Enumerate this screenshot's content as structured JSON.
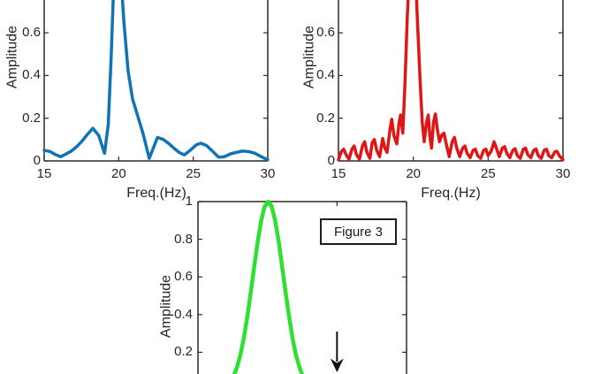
{
  "annotations": {
    "figure_box_label": "Figure 3",
    "arrow": {
      "points_to_x_hz": 25,
      "direction": "down"
    }
  },
  "colors": {
    "blue_line": "#0f73b6",
    "red_line": "#e01616",
    "green_line": "#2fe12f",
    "axis": "#2b2b2b",
    "text": "#262626",
    "annotation": "#111111"
  },
  "chart_data": [
    {
      "id": "top-left-spectrum",
      "type": "line",
      "title": "",
      "xlabel": "Freq.(Hz)",
      "ylabel": "Amplitude",
      "x_range": [
        15,
        30
      ],
      "y_range": [
        0,
        1
      ],
      "xticks": [
        15,
        20,
        25,
        30
      ],
      "xtick_labels": [
        "15",
        "20",
        "25",
        "30"
      ],
      "yticks": [
        0.6,
        0.4,
        0.2,
        0
      ],
      "ytick_labels": [
        "0.6",
        "0.4",
        "0.2",
        "0"
      ],
      "grid": false,
      "legend": null,
      "series": [
        {
          "name": "blue-spectrum",
          "color": "#0f73b6",
          "peak_hz": 20,
          "points": [
            [
              15,
              0.05
            ],
            [
              15.4,
              0.044
            ],
            [
              15.75,
              0.03
            ],
            [
              16.1,
              0.02
            ],
            [
              16.45,
              0.032
            ],
            [
              16.8,
              0.045
            ],
            [
              17.15,
              0.065
            ],
            [
              17.5,
              0.09
            ],
            [
              17.85,
              0.12
            ],
            [
              18.26,
              0.153
            ],
            [
              18.65,
              0.12
            ],
            [
              19.05,
              0.035
            ],
            [
              19.3,
              0.17
            ],
            [
              19.5,
              0.5
            ],
            [
              19.7,
              0.9
            ],
            [
              19.9,
              1.0
            ],
            [
              20.1,
              0.92
            ],
            [
              20.35,
              0.65
            ],
            [
              20.63,
              0.42
            ],
            [
              20.93,
              0.29
            ],
            [
              21.32,
              0.2
            ],
            [
              21.62,
              0.13
            ],
            [
              22.05,
              0.012
            ],
            [
              22.6,
              0.11
            ],
            [
              23,
              0.1
            ],
            [
              23.35,
              0.082
            ],
            [
              23.7,
              0.06
            ],
            [
              24.05,
              0.04
            ],
            [
              24.4,
              0.028
            ],
            [
              24.8,
              0.05
            ],
            [
              25.2,
              0.075
            ],
            [
              25.5,
              0.083
            ],
            [
              25.9,
              0.072
            ],
            [
              26.3,
              0.045
            ],
            [
              26.7,
              0.018
            ],
            [
              27.1,
              0.02
            ],
            [
              27.5,
              0.033
            ],
            [
              27.9,
              0.04
            ],
            [
              28.3,
              0.046
            ],
            [
              28.7,
              0.044
            ],
            [
              29.1,
              0.037
            ],
            [
              29.5,
              0.022
            ],
            [
              30,
              0.005
            ]
          ]
        }
      ]
    },
    {
      "id": "top-right-spectrum",
      "type": "line",
      "title": "",
      "xlabel": "Freq.(Hz)",
      "ylabel": "Amplitude",
      "x_range": [
        15,
        30
      ],
      "y_range": [
        0,
        1
      ],
      "xticks": [
        15,
        20,
        25,
        30
      ],
      "xtick_labels": [
        "15",
        "20",
        "25",
        "30"
      ],
      "yticks": [
        0.6,
        0.4,
        0.2,
        0
      ],
      "ytick_labels": [
        "0.6",
        "0.4",
        "0.2",
        "0"
      ],
      "grid": false,
      "legend": null,
      "series": [
        {
          "name": "red-spectrum",
          "color": "#e01616",
          "peak_hz": 20,
          "points": [
            [
              15,
              0.005
            ],
            [
              15.2,
              0.045
            ],
            [
              15.35,
              0.055
            ],
            [
              15.5,
              0.03
            ],
            [
              15.7,
              0.008
            ],
            [
              15.9,
              0.055
            ],
            [
              16.05,
              0.07
            ],
            [
              16.2,
              0.03
            ],
            [
              16.4,
              0.008
            ],
            [
              16.6,
              0.07
            ],
            [
              16.75,
              0.09
            ],
            [
              16.9,
              0.04
            ],
            [
              17.1,
              0.012
            ],
            [
              17.25,
              0.085
            ],
            [
              17.4,
              0.1
            ],
            [
              17.55,
              0.05
            ],
            [
              17.75,
              0.02
            ],
            [
              17.95,
              0.105
            ],
            [
              18.1,
              0.06
            ],
            [
              18.25,
              0.04
            ],
            [
              18.45,
              0.15
            ],
            [
              18.56,
              0.195
            ],
            [
              18.7,
              0.12
            ],
            [
              18.9,
              0.08
            ],
            [
              19.05,
              0.18
            ],
            [
              19.15,
              0.215
            ],
            [
              19.3,
              0.13
            ],
            [
              19.45,
              0.38
            ],
            [
              19.6,
              0.68
            ],
            [
              19.8,
              0.97
            ],
            [
              19.95,
              1.0
            ],
            [
              20.1,
              0.95
            ],
            [
              20.25,
              0.7
            ],
            [
              20.45,
              0.38
            ],
            [
              20.6,
              0.18
            ],
            [
              20.73,
              0.09
            ],
            [
              20.88,
              0.18
            ],
            [
              21,
              0.215
            ],
            [
              21.1,
              0.12
            ],
            [
              21.22,
              0.06
            ],
            [
              21.35,
              0.18
            ],
            [
              21.48,
              0.22
            ],
            [
              21.6,
              0.15
            ],
            [
              21.75,
              0.09
            ],
            [
              21.9,
              0.12
            ],
            [
              22.05,
              0.13
            ],
            [
              22.2,
              0.08
            ],
            [
              22.4,
              0.02
            ],
            [
              22.6,
              0.09
            ],
            [
              22.75,
              0.11
            ],
            [
              22.9,
              0.06
            ],
            [
              23.1,
              0.02
            ],
            [
              23.3,
              0.06
            ],
            [
              23.45,
              0.07
            ],
            [
              23.6,
              0.035
            ],
            [
              23.8,
              0.015
            ],
            [
              24,
              0.05
            ],
            [
              24.15,
              0.055
            ],
            [
              24.3,
              0.025
            ],
            [
              24.5,
              0.012
            ],
            [
              24.7,
              0.05
            ],
            [
              24.85,
              0.055
            ],
            [
              25,
              0.025
            ],
            [
              25.2,
              0.045
            ],
            [
              25.4,
              0.09
            ],
            [
              25.55,
              0.06
            ],
            [
              25.75,
              0.02
            ],
            [
              25.95,
              0.06
            ],
            [
              26.1,
              0.067
            ],
            [
              26.25,
              0.035
            ],
            [
              26.45,
              0.015
            ],
            [
              26.65,
              0.05
            ],
            [
              26.8,
              0.057
            ],
            [
              26.95,
              0.025
            ],
            [
              27.15,
              0.012
            ],
            [
              27.35,
              0.055
            ],
            [
              27.5,
              0.06
            ],
            [
              27.65,
              0.03
            ],
            [
              27.85,
              0.015
            ],
            [
              28.05,
              0.05
            ],
            [
              28.2,
              0.056
            ],
            [
              28.35,
              0.025
            ],
            [
              28.55,
              0.012
            ],
            [
              28.75,
              0.05
            ],
            [
              28.9,
              0.055
            ],
            [
              29.05,
              0.025
            ],
            [
              29.25,
              0.015
            ],
            [
              29.45,
              0.042
            ],
            [
              29.6,
              0.045
            ],
            [
              29.75,
              0.025
            ],
            [
              30,
              0.005
            ]
          ]
        }
      ]
    },
    {
      "id": "bottom-center-spectrum",
      "type": "line",
      "title": "",
      "xlabel": "",
      "ylabel": "Amplitude",
      "x_range": [
        15,
        30
      ],
      "y_range": [
        0,
        1
      ],
      "xticks": [
        15,
        20,
        25,
        30
      ],
      "xtick_labels": [],
      "yticks": [
        1,
        0.8,
        0.6,
        0.4,
        0.2
      ],
      "ytick_labels": [
        "1",
        "0.8",
        "0.6",
        "0.4",
        "0.2"
      ],
      "grid": false,
      "legend": null,
      "series": [
        {
          "name": "green-spectrum",
          "color": "#2fe12f",
          "peak_hz": 20,
          "points": [
            [
              17.3,
              0.04
            ],
            [
              17.55,
              0.07
            ],
            [
              17.8,
              0.12
            ],
            [
              18.05,
              0.185
            ],
            [
              18.3,
              0.275
            ],
            [
              18.55,
              0.39
            ],
            [
              18.8,
              0.52
            ],
            [
              19.05,
              0.655
            ],
            [
              19.3,
              0.79
            ],
            [
              19.55,
              0.9
            ],
            [
              19.8,
              0.975
            ],
            [
              20.05,
              1.0
            ],
            [
              20.3,
              0.975
            ],
            [
              20.55,
              0.9
            ],
            [
              20.8,
              0.79
            ],
            [
              21.05,
              0.655
            ],
            [
              21.3,
              0.52
            ],
            [
              21.55,
              0.39
            ],
            [
              21.8,
              0.275
            ],
            [
              22.05,
              0.185
            ],
            [
              22.3,
              0.12
            ],
            [
              22.55,
              0.07
            ],
            [
              22.8,
              0.04
            ]
          ]
        }
      ]
    }
  ]
}
